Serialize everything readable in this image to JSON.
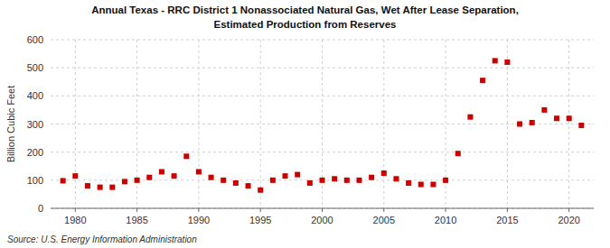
{
  "chart_data": {
    "type": "scatter",
    "title": "Annual Texas - RRC District 1 Nonassociated Natural Gas, Wet After Lease Separation,",
    "subtitle": "Estimated Production from Reserves",
    "ylabel": "Billion Cubic Feet",
    "annotations": [
      "Source: U.S. Energy Information Administration"
    ],
    "x": [
      1979,
      1980,
      1981,
      1982,
      1983,
      1984,
      1985,
      1986,
      1987,
      1988,
      1989,
      1990,
      1991,
      1992,
      1993,
      1994,
      1995,
      1996,
      1997,
      1998,
      1999,
      2000,
      2001,
      2002,
      2003,
      2004,
      2005,
      2006,
      2007,
      2008,
      2009,
      2010,
      2011,
      2012,
      2013,
      2014,
      2015,
      2016,
      2017,
      2018,
      2019,
      2020,
      2021
    ],
    "values": [
      98,
      115,
      80,
      75,
      75,
      95,
      100,
      110,
      130,
      115,
      185,
      130,
      110,
      100,
      90,
      80,
      65,
      100,
      115,
      120,
      90,
      100,
      105,
      100,
      100,
      110,
      125,
      105,
      90,
      85,
      85,
      100,
      195,
      325,
      455,
      525,
      520,
      300,
      305,
      350,
      320,
      320,
      295
    ],
    "color": "#cc0000",
    "marker": "square",
    "xlim": [
      1978,
      2022
    ],
    "ylim": [
      0,
      600
    ],
    "xticks": [
      1980,
      1985,
      1990,
      1995,
      2000,
      2005,
      2010,
      2015,
      2020
    ],
    "yticks": [
      0,
      100,
      200,
      300,
      400,
      500,
      600
    ],
    "grid": true
  }
}
